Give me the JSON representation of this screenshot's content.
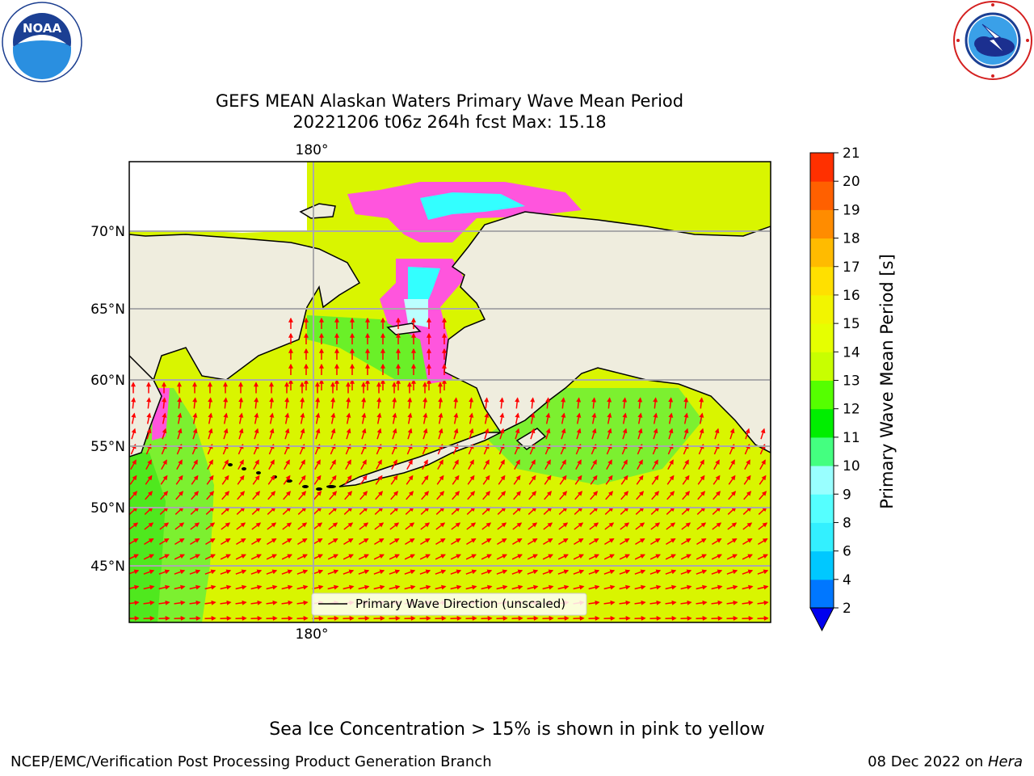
{
  "header": {
    "title_line1": "GEFS MEAN Alaskan Waters Primary Wave Mean Period",
    "title_line2": "20221206 t06z 264h fcst   Max: 15.18"
  },
  "logos": {
    "left_icon": "noaa-logo",
    "left_text": "NOAA",
    "right_icon": "nws-logo"
  },
  "map": {
    "lat_labels": [
      "70°N",
      "65°N",
      "60°N",
      "55°N",
      "50°N",
      "45°N"
    ],
    "lon_label_top": "180°",
    "lon_label_bottom": "180°",
    "legend_label": "Primary Wave Direction (unscaled)",
    "arrow_color": "#ff0000",
    "land_color": "#efedde",
    "dominant_period_color": "#d9f500"
  },
  "colorbar": {
    "label": "Primary Wave Mean Period [s]",
    "ticks": [
      "2",
      "4",
      "6",
      "8",
      "9",
      "10",
      "11",
      "12",
      "13",
      "14",
      "15",
      "16",
      "17",
      "18",
      "19",
      "20",
      "21"
    ],
    "colors": [
      "#0077ff",
      "#00c8ff",
      "#33f0ff",
      "#55ffff",
      "#99ffff",
      "#44ff80",
      "#00ee00",
      "#55ff00",
      "#c8ff00",
      "#e6ff00",
      "#f2f500",
      "#ffe000",
      "#ffbb00",
      "#ff8c00",
      "#ff6000",
      "#ff3000",
      "#ff0000"
    ],
    "under_color": "#0000ee"
  },
  "footer": {
    "ice_note": "Sea Ice Concentration > 15% is shown in pink to yellow",
    "left": "NCEP/EMC/Verification Post Processing Product Generation Branch",
    "date": "08 Dec 2022 on ",
    "host": "Hera"
  }
}
